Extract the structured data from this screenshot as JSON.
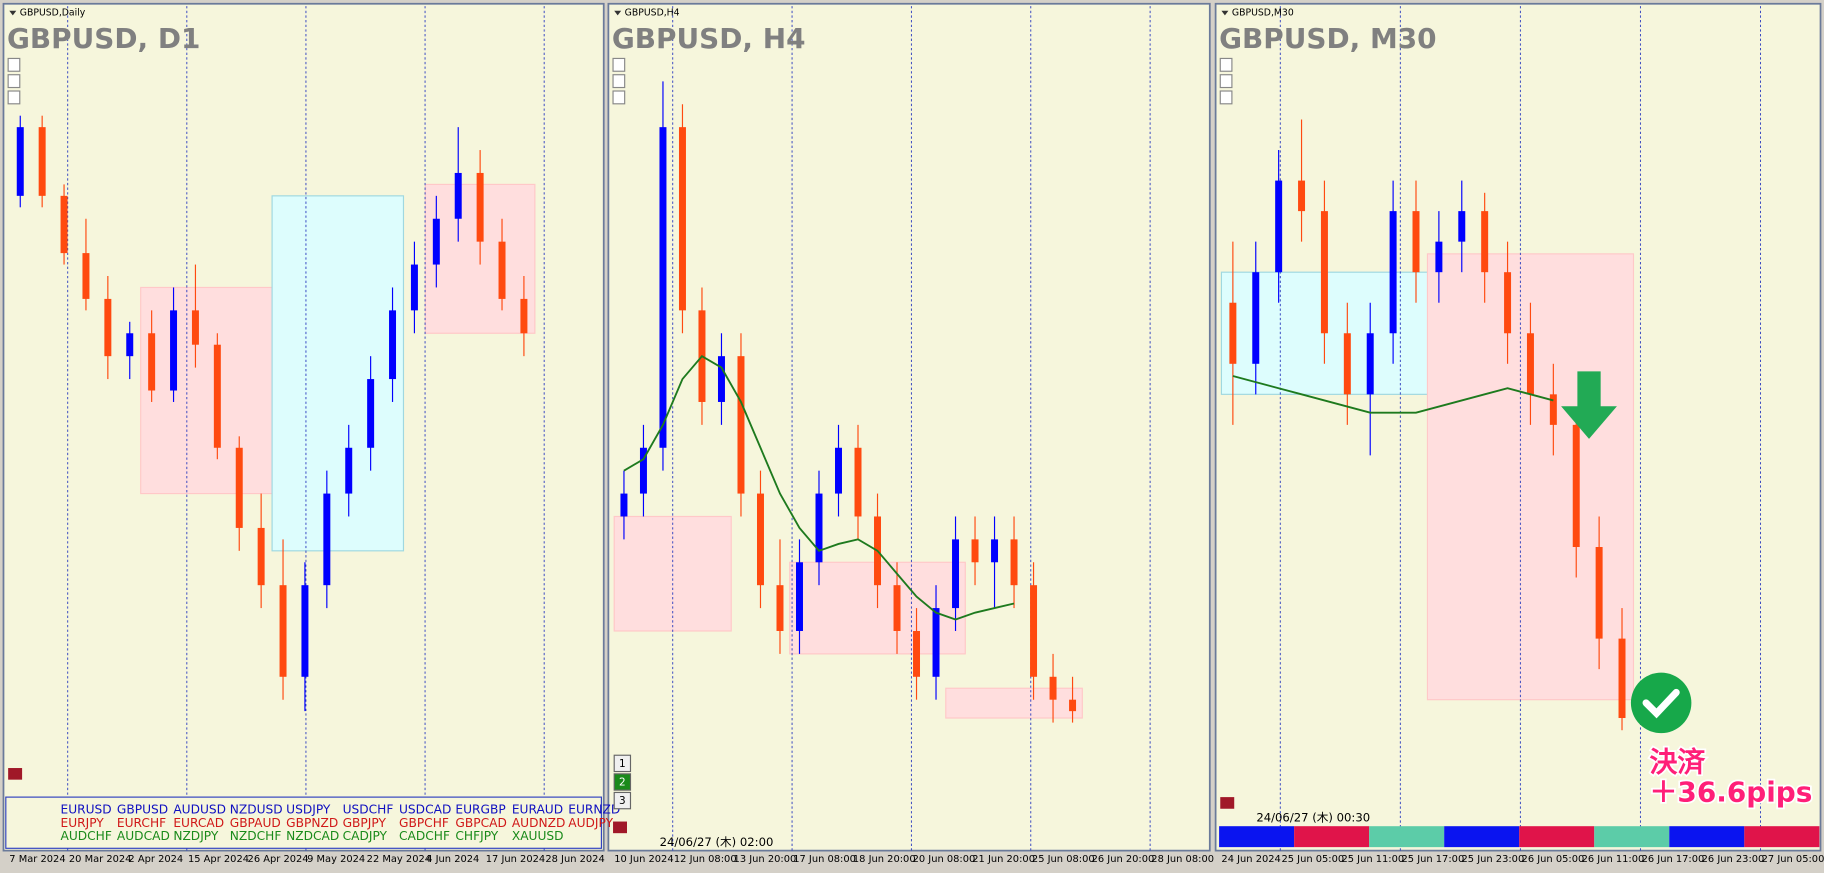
{
  "up_color": "#0000ff",
  "down_color": "#ff4a10",
  "ma_color": "#1e7a1e",
  "panels": [
    {
      "caption": "GBPUSD,Daily",
      "title": "GBPUSD, D1",
      "ylim": [
        1.228,
        1.292
      ],
      "dates": [
        "7 Mar 2024",
        "20 Mar 2024",
        "2 Apr 2024",
        "15 Apr 2024",
        "26 Apr 2024",
        "9 May 2024",
        "22 May 2024",
        "4 Jun 2024",
        "17 Jun 2024",
        "28 Jun 2024"
      ],
      "candles": [
        [
          1.28,
          1.287,
          1.279,
          1.286
        ],
        [
          1.286,
          1.287,
          1.279,
          1.28
        ],
        [
          1.28,
          1.281,
          1.274,
          1.275
        ],
        [
          1.275,
          1.278,
          1.27,
          1.271
        ],
        [
          1.271,
          1.273,
          1.264,
          1.266
        ],
        [
          1.266,
          1.269,
          1.264,
          1.268
        ],
        [
          1.268,
          1.27,
          1.262,
          1.263
        ],
        [
          1.263,
          1.272,
          1.262,
          1.27
        ],
        [
          1.27,
          1.274,
          1.265,
          1.267
        ],
        [
          1.267,
          1.268,
          1.257,
          1.258
        ],
        [
          1.258,
          1.259,
          1.249,
          1.251
        ],
        [
          1.251,
          1.254,
          1.244,
          1.246
        ],
        [
          1.246,
          1.25,
          1.236,
          1.238
        ],
        [
          1.238,
          1.248,
          1.235,
          1.246
        ],
        [
          1.246,
          1.256,
          1.244,
          1.254
        ],
        [
          1.254,
          1.26,
          1.252,
          1.258
        ],
        [
          1.258,
          1.266,
          1.256,
          1.264
        ],
        [
          1.264,
          1.272,
          1.262,
          1.27
        ],
        [
          1.27,
          1.276,
          1.268,
          1.274
        ],
        [
          1.274,
          1.28,
          1.272,
          1.278
        ],
        [
          1.278,
          1.286,
          1.276,
          1.282
        ],
        [
          1.282,
          1.284,
          1.274,
          1.276
        ],
        [
          1.276,
          1.278,
          1.27,
          1.271
        ],
        [
          1.271,
          1.273,
          1.266,
          1.268
        ]
      ],
      "zones": [
        {
          "color": "#ffdede",
          "from": 6,
          "to": 11,
          "low": 1.254,
          "high": 1.272
        },
        {
          "color": "#ddfdfd",
          "from": 12,
          "to": 17,
          "low": 1.249,
          "high": 1.28
        },
        {
          "color": "#ffdede",
          "from": 19,
          "to": 23,
          "low": 1.268,
          "high": 1.281
        }
      ]
    },
    {
      "caption": "GBPUSD,H4",
      "title": "GBPUSD, H4",
      "ylim": [
        1.258,
        1.29
      ],
      "dates": [
        "10 Jun 2024",
        "12 Jun 08:00",
        "13 Jun 20:00",
        "17 Jun 08:00",
        "18 Jun 20:00",
        "20 Jun 08:00",
        "21 Jun 20:00",
        "25 Jun 08:00",
        "26 Jun 20:00",
        "28 Jun 08:00"
      ],
      "candles": [
        [
          1.27,
          1.272,
          1.269,
          1.271
        ],
        [
          1.271,
          1.274,
          1.27,
          1.273
        ],
        [
          1.273,
          1.289,
          1.272,
          1.287
        ],
        [
          1.287,
          1.288,
          1.278,
          1.279
        ],
        [
          1.279,
          1.28,
          1.274,
          1.275
        ],
        [
          1.275,
          1.278,
          1.274,
          1.277
        ],
        [
          1.277,
          1.278,
          1.27,
          1.271
        ],
        [
          1.271,
          1.272,
          1.266,
          1.267
        ],
        [
          1.267,
          1.269,
          1.264,
          1.265
        ],
        [
          1.265,
          1.269,
          1.264,
          1.268
        ],
        [
          1.268,
          1.272,
          1.267,
          1.271
        ],
        [
          1.271,
          1.274,
          1.27,
          1.273
        ],
        [
          1.273,
          1.274,
          1.269,
          1.27
        ],
        [
          1.27,
          1.271,
          1.266,
          1.267
        ],
        [
          1.267,
          1.268,
          1.264,
          1.265
        ],
        [
          1.265,
          1.266,
          1.262,
          1.263
        ],
        [
          1.263,
          1.267,
          1.262,
          1.266
        ],
        [
          1.266,
          1.27,
          1.265,
          1.269
        ],
        [
          1.269,
          1.27,
          1.267,
          1.268
        ],
        [
          1.268,
          1.27,
          1.266,
          1.269
        ],
        [
          1.269,
          1.27,
          1.266,
          1.267
        ],
        [
          1.267,
          1.268,
          1.262,
          1.263
        ],
        [
          1.263,
          1.264,
          1.261,
          1.262
        ],
        [
          1.262,
          1.263,
          1.261,
          1.2615
        ]
      ],
      "ma": [
        1.272,
        1.2725,
        1.274,
        1.276,
        1.277,
        1.2765,
        1.275,
        1.273,
        1.271,
        1.2695,
        1.2685,
        1.2688,
        1.269,
        1.2685,
        1.2675,
        1.2665,
        1.2658,
        1.2655,
        1.2658,
        1.266,
        1.2662,
        null,
        null,
        null
      ],
      "zones": [
        {
          "color": "#ffdede",
          "from": 0,
          "to": 5,
          "low": 1.265,
          "high": 1.27
        },
        {
          "color": "#ffdede",
          "from": 9,
          "to": 17,
          "low": 1.264,
          "high": 1.268
        },
        {
          "color": "#ffdede",
          "from": 17,
          "to": 23,
          "low": 1.2612,
          "high": 1.2625
        }
      ]
    },
    {
      "caption": "GBPUSD,M30",
      "title": "GBPUSD, M30",
      "ylim": [
        1.26,
        1.272
      ],
      "dates": [
        "24 Jun 2024",
        "25 Jun 05:00",
        "25 Jun 11:00",
        "25 Jun 17:00",
        "25 Jun 23:00",
        "26 Jun 05:00",
        "26 Jun 11:00",
        "26 Jun 17:00",
        "26 Jun 23:00",
        "27 Jun 05:00"
      ],
      "candles": [
        [
          1.268,
          1.269,
          1.266,
          1.267
        ],
        [
          1.267,
          1.269,
          1.2665,
          1.2685
        ],
        [
          1.2685,
          1.2705,
          1.268,
          1.27
        ],
        [
          1.27,
          1.271,
          1.269,
          1.2695
        ],
        [
          1.2695,
          1.27,
          1.267,
          1.2675
        ],
        [
          1.2675,
          1.268,
          1.266,
          1.2665
        ],
        [
          1.2665,
          1.268,
          1.2655,
          1.2675
        ],
        [
          1.2675,
          1.27,
          1.267,
          1.2695
        ],
        [
          1.2695,
          1.27,
          1.268,
          1.2685
        ],
        [
          1.2685,
          1.2695,
          1.268,
          1.269
        ],
        [
          1.269,
          1.27,
          1.2685,
          1.2695
        ],
        [
          1.2695,
          1.2698,
          1.268,
          1.2685
        ],
        [
          1.2685,
          1.269,
          1.267,
          1.2675
        ],
        [
          1.2675,
          1.268,
          1.266,
          1.2665
        ],
        [
          1.2665,
          1.267,
          1.2655,
          1.266
        ],
        [
          1.266,
          1.2662,
          1.2635,
          1.264
        ],
        [
          1.264,
          1.2645,
          1.262,
          1.2625
        ],
        [
          1.2625,
          1.263,
          1.261,
          1.2612
        ]
      ],
      "ma": [
        1.2668,
        1.2667,
        1.2666,
        1.2665,
        1.2664,
        1.2663,
        1.2662,
        1.2662,
        1.2662,
        1.2663,
        1.2664,
        1.2665,
        1.2666,
        1.2665,
        1.2664,
        null,
        null,
        null
      ],
      "zones": [
        {
          "color": "#ddfdfd",
          "from": 0,
          "to": 9,
          "low": 1.2665,
          "high": 1.2685
        },
        {
          "color": "#ffdede",
          "from": 9,
          "to": 17,
          "low": 1.2615,
          "high": 1.2688
        }
      ]
    }
  ],
  "symbols": [
    {
      "color": "#1010c0",
      "names": [
        "EURUSD",
        "GBPUSD",
        "AUDUSD",
        "NZDUSD",
        "USDJPY",
        "USDCHF",
        "USDCAD",
        "EURGBP",
        "EURAUD",
        "EURNZD"
      ]
    },
    {
      "color": "#d01818",
      "names": [
        "EURJPY",
        "EURCHF",
        "EURCAD",
        "GBPAUD",
        "GBPNZD",
        "GBPJPY",
        "GBPCHF",
        "GBPCAD",
        "AUDNZD",
        "AUDJPY"
      ]
    },
    {
      "color": "#1a8a1a",
      "names": [
        "AUDCHF",
        "AUDCAD",
        "NZDJPY",
        "NZDCHF",
        "NZDCAD",
        "CADJPY",
        "CADCHF",
        "CHFJPY",
        "XAUUSD"
      ]
    }
  ],
  "buttons": [
    "1",
    "2",
    "3"
  ],
  "timestamp_h4": "24/06/27 (木) 02:00",
  "timestamp_m30": "24/06/27 (木) 00:30",
  "result": {
    "label": "決済",
    "pips": "＋36.6pips"
  }
}
